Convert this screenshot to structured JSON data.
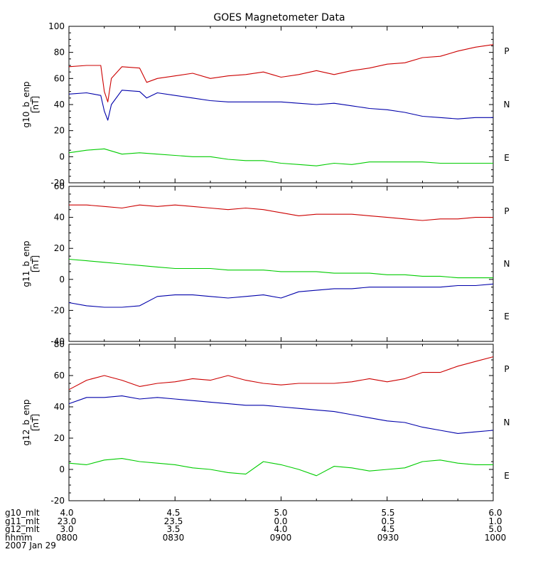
{
  "chart_data": {
    "title": "GOES Magnetometer Data",
    "date": "2007 Jan 29",
    "x_ticks": [
      "0800",
      "0830",
      "0900",
      "0930",
      "1000"
    ],
    "footer_rows": [
      {
        "label": "g10_mlt",
        "values": [
          "4.0",
          "4.5",
          "5.0",
          "5.5",
          "6.0"
        ]
      },
      {
        "label": "g11_mlt",
        "values": [
          "23.0",
          "23.5",
          "0.0",
          "0.5",
          "1.0"
        ]
      },
      {
        "label": "g12_mlt",
        "values": [
          "3.0",
          "3.5",
          "4.0",
          "4.5",
          "5.0"
        ]
      },
      {
        "label": "hhmm",
        "values": [
          "0800",
          "0830",
          "0900",
          "0930",
          "1000"
        ]
      }
    ],
    "panels": [
      {
        "type": "line",
        "ylabel": "g10_b_enp",
        "yunit": "[nT]",
        "ylim": [
          -20,
          100
        ],
        "yticks": [
          -20,
          0,
          20,
          40,
          60,
          80,
          100
        ],
        "series": [
          {
            "name": "P",
            "color": "#cc0000",
            "x": [
              "0800",
              "0805",
              "0809",
              "0810",
              "0811",
              "0812",
              "0815",
              "0820",
              "0822",
              "0825",
              "0830",
              "0835",
              "0840",
              "0845",
              "0850",
              "0855",
              "0900",
              "0905",
              "0910",
              "0915",
              "0920",
              "0925",
              "0930",
              "0935",
              "0940",
              "0945",
              "0950",
              "0955",
              "1000"
            ],
            "values": [
              69,
              70,
              70,
              50,
              42,
              60,
              69,
              68,
              57,
              60,
              62,
              64,
              60,
              62,
              63,
              65,
              61,
              63,
              66,
              63,
              66,
              68,
              71,
              72,
              76,
              77,
              81,
              84,
              86
            ]
          },
          {
            "name": "N",
            "color": "#0000aa",
            "x": [
              "0800",
              "0805",
              "0809",
              "0810",
              "0811",
              "0812",
              "0815",
              "0820",
              "0822",
              "0825",
              "0830",
              "0835",
              "0840",
              "0845",
              "0850",
              "0855",
              "0900",
              "0905",
              "0910",
              "0915",
              "0920",
              "0925",
              "0930",
              "0935",
              "0940",
              "0945",
              "0950",
              "0955",
              "1000"
            ],
            "values": [
              48,
              49,
              47,
              35,
              28,
              40,
              51,
              50,
              45,
              49,
              47,
              45,
              43,
              42,
              42,
              42,
              42,
              41,
              40,
              41,
              39,
              37,
              36,
              34,
              31,
              30,
              29,
              30,
              30
            ]
          },
          {
            "name": "E",
            "color": "#00cc00",
            "x": [
              "0800",
              "0805",
              "0810",
              "0815",
              "0820",
              "0825",
              "0830",
              "0835",
              "0840",
              "0845",
              "0850",
              "0855",
              "0900",
              "0905",
              "0910",
              "0915",
              "0920",
              "0925",
              "0930",
              "0935",
              "0940",
              "0945",
              "0950",
              "0955",
              "1000"
            ],
            "values": [
              3,
              5,
              6,
              2,
              3,
              2,
              1,
              0,
              0,
              -2,
              -3,
              -3,
              -5,
              -6,
              -7,
              -5,
              -6,
              -4,
              -4,
              -4,
              -4,
              -5,
              -5,
              -5,
              -5
            ]
          }
        ]
      },
      {
        "type": "line",
        "ylabel": "g11_b_enp",
        "yunit": "[nT]",
        "ylim": [
          -40,
          60
        ],
        "yticks": [
          -40,
          -20,
          0,
          20,
          40,
          60
        ],
        "series": [
          {
            "name": "P",
            "color": "#cc0000",
            "x": [
              "0800",
              "0805",
              "0810",
              "0815",
              "0820",
              "0825",
              "0830",
              "0835",
              "0840",
              "0845",
              "0850",
              "0855",
              "0900",
              "0905",
              "0910",
              "0915",
              "0920",
              "0925",
              "0930",
              "0935",
              "0940",
              "0945",
              "0950",
              "0955",
              "1000"
            ],
            "values": [
              48,
              48,
              47,
              46,
              48,
              47,
              48,
              47,
              46,
              45,
              46,
              45,
              43,
              41,
              42,
              42,
              42,
              41,
              40,
              39,
              38,
              39,
              39,
              40,
              40
            ]
          },
          {
            "name": "N",
            "color": "#00cc00",
            "x": [
              "0800",
              "0805",
              "0810",
              "0815",
              "0820",
              "0825",
              "0830",
              "0835",
              "0840",
              "0845",
              "0850",
              "0855",
              "0900",
              "0905",
              "0910",
              "0915",
              "0920",
              "0925",
              "0930",
              "0935",
              "0940",
              "0945",
              "0950",
              "0955",
              "1000"
            ],
            "values": [
              13,
              12,
              11,
              10,
              9,
              8,
              7,
              7,
              7,
              6,
              6,
              6,
              5,
              5,
              5,
              4,
              4,
              4,
              3,
              3,
              2,
              2,
              1,
              1,
              1
            ]
          },
          {
            "name": "E",
            "color": "#0000aa",
            "x": [
              "0800",
              "0805",
              "0810",
              "0815",
              "0820",
              "0825",
              "0830",
              "0835",
              "0840",
              "0845",
              "0850",
              "0855",
              "0900",
              "0905",
              "0910",
              "0915",
              "0920",
              "0925",
              "0930",
              "0935",
              "0940",
              "0945",
              "0950",
              "0955",
              "1000"
            ],
            "values": [
              -15,
              -17,
              -18,
              -18,
              -17,
              -11,
              -10,
              -10,
              -11,
              -12,
              -11,
              -10,
              -12,
              -8,
              -7,
              -6,
              -6,
              -5,
              -5,
              -5,
              -5,
              -5,
              -4,
              -4,
              -3
            ]
          }
        ]
      },
      {
        "type": "line",
        "ylabel": "g12_b_enp",
        "yunit": "[nT]",
        "ylim": [
          -20,
          80
        ],
        "yticks": [
          -20,
          0,
          20,
          40,
          60,
          80
        ],
        "series": [
          {
            "name": "P",
            "color": "#cc0000",
            "x": [
              "0800",
              "0805",
              "0810",
              "0815",
              "0820",
              "0825",
              "0830",
              "0835",
              "0840",
              "0845",
              "0850",
              "0855",
              "0900",
              "0905",
              "0910",
              "0915",
              "0920",
              "0925",
              "0930",
              "0935",
              "0940",
              "0945",
              "0950",
              "0955",
              "1000"
            ],
            "values": [
              51,
              57,
              60,
              57,
              53,
              55,
              56,
              58,
              57,
              60,
              57,
              55,
              54,
              55,
              55,
              55,
              56,
              58,
              56,
              58,
              62,
              62,
              66,
              69,
              72
            ]
          },
          {
            "name": "N",
            "color": "#0000aa",
            "x": [
              "0800",
              "0805",
              "0810",
              "0815",
              "0820",
              "0825",
              "0830",
              "0835",
              "0840",
              "0845",
              "0850",
              "0855",
              "0900",
              "0905",
              "0910",
              "0915",
              "0920",
              "0925",
              "0930",
              "0935",
              "0940",
              "0945",
              "0950",
              "0955",
              "1000"
            ],
            "values": [
              42,
              46,
              46,
              47,
              45,
              46,
              45,
              44,
              43,
              42,
              41,
              41,
              40,
              39,
              38,
              37,
              35,
              33,
              31,
              30,
              27,
              25,
              23,
              24,
              25
            ]
          },
          {
            "name": "E",
            "color": "#00cc00",
            "x": [
              "0800",
              "0805",
              "0810",
              "0815",
              "0820",
              "0825",
              "0830",
              "0835",
              "0840",
              "0845",
              "0850",
              "0855",
              "0900",
              "0905",
              "0910",
              "0915",
              "0920",
              "0925",
              "0930",
              "0935",
              "0940",
              "0945",
              "0950",
              "0955",
              "1000"
            ],
            "values": [
              4,
              3,
              6,
              7,
              5,
              4,
              3,
              1,
              0,
              -2,
              -3,
              5,
              3,
              0,
              -4,
              2,
              1,
              -1,
              0,
              1,
              5,
              6,
              4,
              3,
              3
            ]
          }
        ]
      }
    ]
  }
}
